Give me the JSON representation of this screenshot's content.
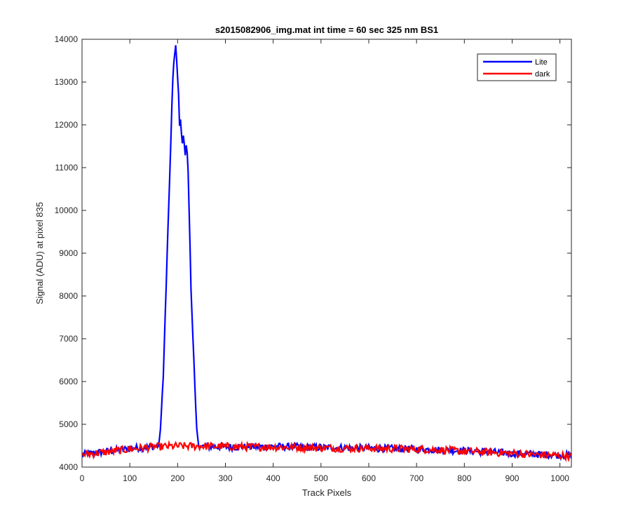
{
  "chart_data": {
    "type": "line",
    "title": "s2015082906_img.mat int time = 60 sec  325 nm BS1",
    "xlabel": "Track Pixels",
    "ylabel": "Signal (ADU) at pixel 835",
    "xlim": [
      0,
      1024
    ],
    "ylim": [
      4000,
      14000
    ],
    "xticks": [
      0,
      100,
      200,
      300,
      400,
      500,
      600,
      700,
      800,
      900,
      1000
    ],
    "yticks": [
      4000,
      5000,
      6000,
      7000,
      8000,
      9000,
      10000,
      11000,
      12000,
      13000,
      14000
    ],
    "grid": false,
    "legend_position": "top-right",
    "series": [
      {
        "name": "Lite",
        "color": "#0000ff",
        "points": [
          [
            0,
            4290
          ],
          [
            25,
            4330
          ],
          [
            50,
            4360
          ],
          [
            75,
            4400
          ],
          [
            100,
            4430
          ],
          [
            125,
            4460
          ],
          [
            150,
            4480
          ],
          [
            160,
            4500
          ],
          [
            163,
            4700
          ],
          [
            167,
            5500
          ],
          [
            170,
            6100
          ],
          [
            173,
            7200
          ],
          [
            176,
            8200
          ],
          [
            179,
            9300
          ],
          [
            182,
            10300
          ],
          [
            185,
            11300
          ],
          [
            188,
            12400
          ],
          [
            191,
            13400
          ],
          [
            193,
            13550
          ],
          [
            196,
            13850
          ],
          [
            199,
            13300
          ],
          [
            202,
            12700
          ],
          [
            204,
            12000
          ],
          [
            207,
            12150
          ],
          [
            209,
            11500
          ],
          [
            212,
            11750
          ],
          [
            216,
            11300
          ],
          [
            219,
            11600
          ],
          [
            222,
            10900
          ],
          [
            225,
            9600
          ],
          [
            228,
            8200
          ],
          [
            231,
            7300
          ],
          [
            234,
            6500
          ],
          [
            237,
            5600
          ],
          [
            240,
            4900
          ],
          [
            243,
            4550
          ],
          [
            250,
            4480
          ],
          [
            300,
            4470
          ],
          [
            350,
            4470
          ],
          [
            400,
            4480
          ],
          [
            450,
            4470
          ],
          [
            500,
            4460
          ],
          [
            550,
            4450
          ],
          [
            600,
            4440
          ],
          [
            650,
            4430
          ],
          [
            700,
            4420
          ],
          [
            750,
            4400
          ],
          [
            800,
            4380
          ],
          [
            850,
            4360
          ],
          [
            900,
            4320
          ],
          [
            950,
            4300
          ],
          [
            1000,
            4280
          ],
          [
            1024,
            4270
          ]
        ]
      },
      {
        "name": "dark",
        "color": "#ff0000",
        "points": [
          [
            0,
            4290
          ],
          [
            50,
            4350
          ],
          [
            100,
            4420
          ],
          [
            150,
            4470
          ],
          [
            200,
            4490
          ],
          [
            250,
            4490
          ],
          [
            300,
            4480
          ],
          [
            350,
            4470
          ],
          [
            400,
            4470
          ],
          [
            450,
            4460
          ],
          [
            500,
            4450
          ],
          [
            550,
            4440
          ],
          [
            600,
            4440
          ],
          [
            650,
            4430
          ],
          [
            700,
            4420
          ],
          [
            750,
            4400
          ],
          [
            800,
            4370
          ],
          [
            850,
            4350
          ],
          [
            900,
            4320
          ],
          [
            950,
            4290
          ],
          [
            1000,
            4270
          ],
          [
            1024,
            4260
          ]
        ],
        "noise_amplitude": 90
      }
    ]
  }
}
